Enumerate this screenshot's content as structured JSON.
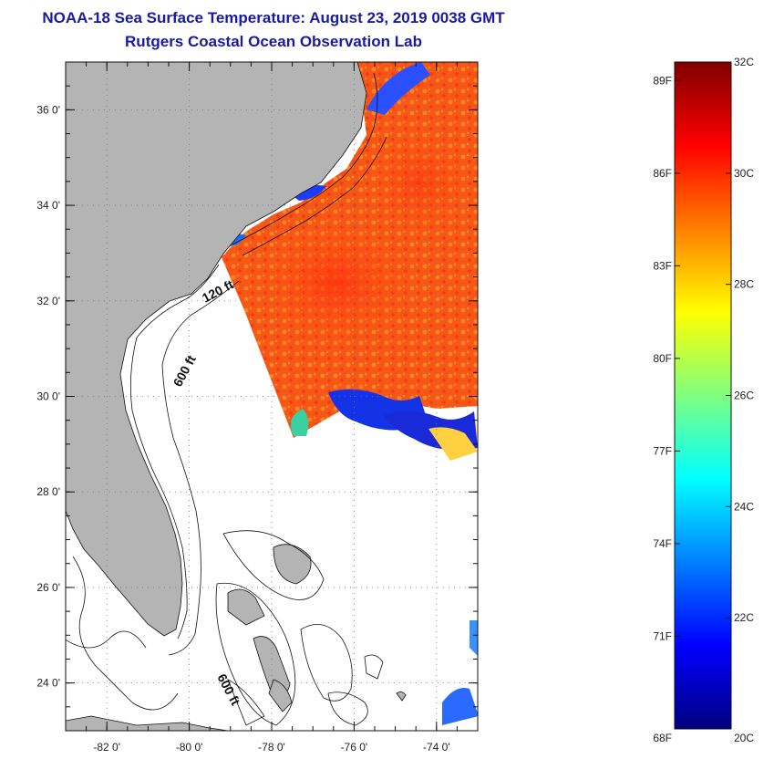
{
  "header": {
    "title": "NOAA-18 Sea Surface Temperature:  August 23, 2019 0038 GMT",
    "subtitle": "Rutgers Coastal Ocean Observation Lab"
  },
  "map": {
    "lon_range": [
      -83,
      -73
    ],
    "lat_range": [
      23,
      37
    ],
    "lon_ticks": [
      -82,
      -80,
      -78,
      -76,
      -74
    ],
    "lat_ticks": [
      24,
      26,
      28,
      30,
      32,
      34,
      36
    ],
    "lon_tick_labels": [
      "-82 0'",
      "-80 0'",
      "-78 0'",
      "-76 0'",
      "-74 0'"
    ],
    "lat_tick_labels": [
      "24 0'",
      "26 0'",
      "28 0'",
      "30 0'",
      "32 0'",
      "34 0'",
      "36 0'"
    ],
    "grid": true,
    "land_color": "#b4b4b4",
    "contour_labels": [
      "120 ft",
      "600 ft",
      "600 ft"
    ]
  },
  "colorbar": {
    "range_c": [
      20,
      32
    ],
    "celsius_labels": [
      "32C",
      "30C",
      "28C",
      "26C",
      "24C",
      "22C",
      "20C"
    ],
    "celsius_values": [
      32,
      30,
      28,
      26,
      24,
      22,
      20
    ],
    "fahrenheit_labels": [
      "89F",
      "86F",
      "83F",
      "80F",
      "77F",
      "74F",
      "71F",
      "68F"
    ],
    "fahrenheit_values": [
      89,
      86,
      83,
      80,
      77,
      74,
      71,
      68
    ],
    "colors": [
      "#00007f",
      "#0000ff",
      "#007fff",
      "#00ffff",
      "#7fff7f",
      "#ffff00",
      "#ff7f00",
      "#ff0000",
      "#7f0000"
    ]
  }
}
